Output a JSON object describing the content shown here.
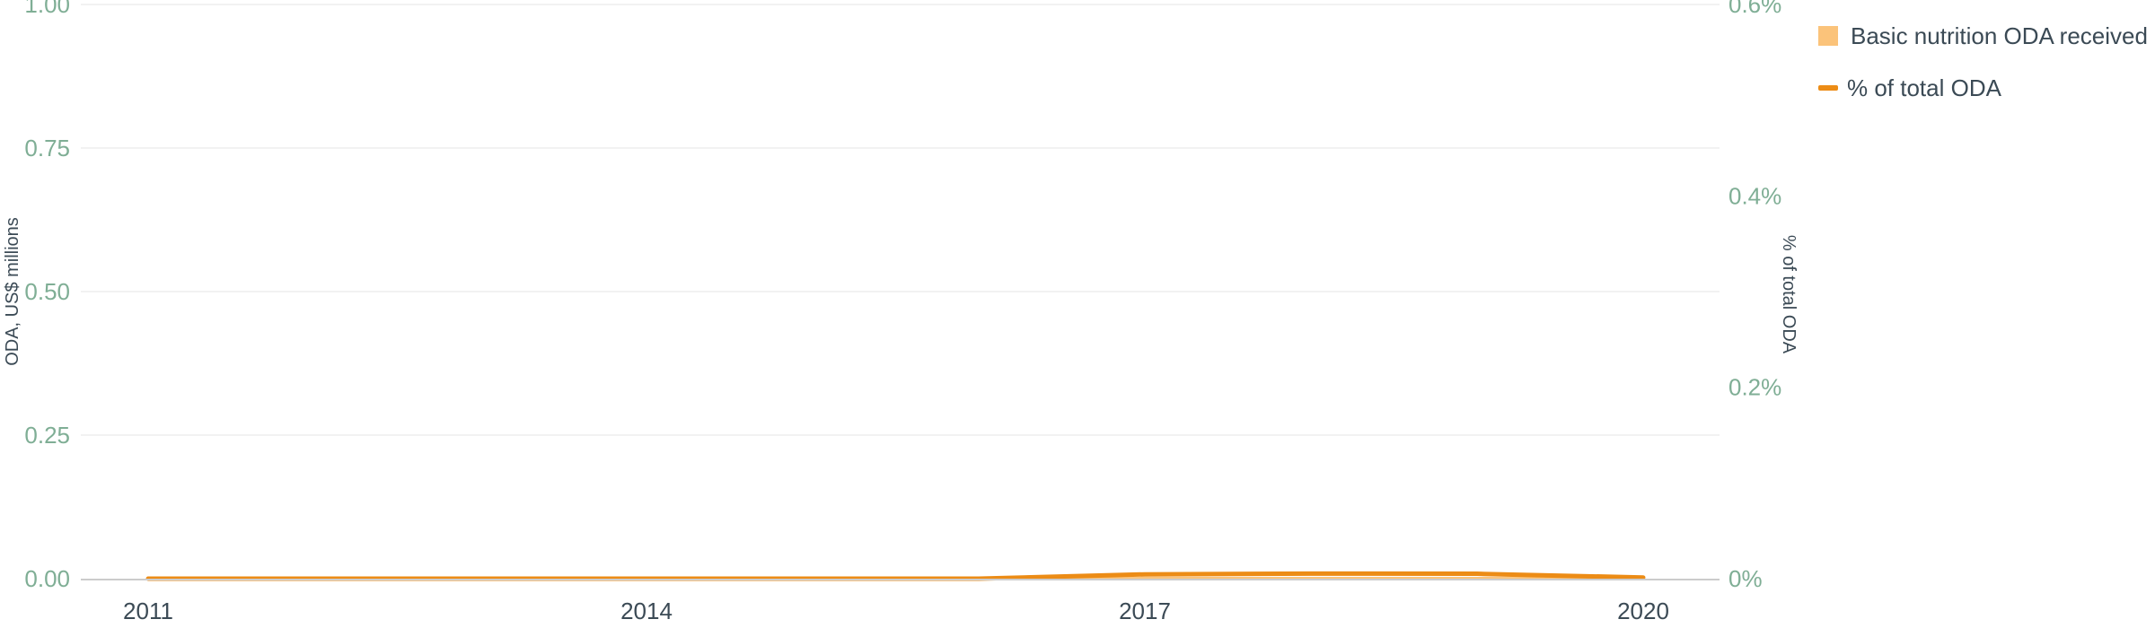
{
  "chart_data": {
    "type": "area",
    "x": [
      2011,
      2012,
      2013,
      2014,
      2015,
      2016,
      2017,
      2018,
      2019,
      2020
    ],
    "xticks": [
      "2011",
      "2014",
      "2017",
      "2020"
    ],
    "series": [
      {
        "name": "Basic nutrition ODA received",
        "axis": "left",
        "type": "area",
        "values": [
          0,
          0,
          0,
          0,
          0,
          0,
          0.002,
          0.002,
          0.002,
          0.001
        ]
      },
      {
        "name": "% of total ODA",
        "axis": "right",
        "type": "line",
        "values": [
          0,
          0,
          0,
          0,
          0,
          0,
          0.0045,
          0.0053,
          0.0051,
          0.0012
        ]
      }
    ],
    "ylabel": "ODA, US$ millions",
    "y2label": "% of total ODA",
    "ylim": [
      0,
      1
    ],
    "y2lim": [
      0,
      0.6
    ],
    "yticks": [
      "0.00",
      "0.25",
      "0.50",
      "0.75",
      "1.00"
    ],
    "y2ticks": [
      "0%",
      "0.2%",
      "0.4%",
      "0.6%"
    ],
    "grid": true,
    "legend_position": "top-right",
    "colors": {
      "area": "#fbc37a",
      "line": "#ec8c16",
      "tick_text": "#7fae95",
      "label_text": "#3b4a55",
      "grid": "#eeeeee",
      "axis": "#cccccc"
    }
  },
  "legend": {
    "items": [
      {
        "label": "Basic nutrition ODA received",
        "kind": "area"
      },
      {
        "label": "% of total ODA",
        "kind": "line"
      }
    ]
  }
}
